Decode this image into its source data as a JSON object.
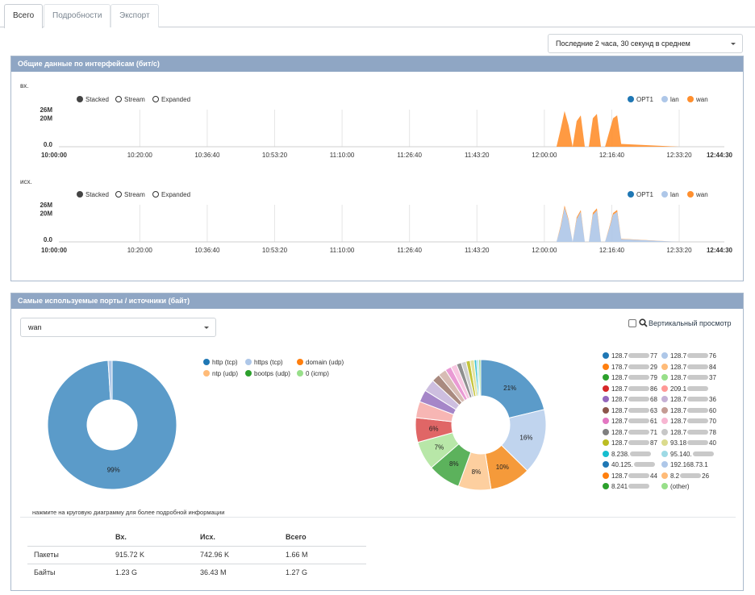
{
  "tabs": [
    "Всего",
    "Подробности",
    "Экспорт"
  ],
  "period_select": "Последние 2 часа, 30 секунд в среднем",
  "interfaces_panel": {
    "title": "Общие данные по интерфейсам (бит/с)",
    "in_label": "вх.",
    "out_label": "исх.",
    "modes": [
      "Stacked",
      "Stream",
      "Expanded"
    ],
    "series": [
      {
        "name": "OPT1",
        "color": "#1f77b4"
      },
      {
        "name": "lan",
        "color": "#aec7e8"
      },
      {
        "name": "wan",
        "color": "#ff8f2e"
      }
    ],
    "y_ticks": [
      "26M",
      "20M",
      "0.0"
    ],
    "x_ticks": [
      "10:00:00",
      "10:20:00",
      "10:36:40",
      "10:53:20",
      "11:10:00",
      "11:26:40",
      "11:43:20",
      "12:00:00",
      "12:16:40",
      "12:33:20",
      "12:44:30"
    ]
  },
  "ports_panel": {
    "title": "Самые используемые порты / источники (байт)",
    "interface_select": "wan",
    "vertical_view_label": "Вертикальный просмотр",
    "hint": "нажмите на круговую диаграмму для более подробной информации"
  },
  "chart_data": [
    {
      "type": "area",
      "title": "",
      "xlabel": "вх.",
      "ylabel": "",
      "ylim": [
        0,
        26000000
      ],
      "x": [
        "10:00:00",
        "10:20:00",
        "10:36:40",
        "10:53:20",
        "11:10:00",
        "11:26:40",
        "11:43:20",
        "12:00:00",
        "12:03:00",
        "12:04:00",
        "12:05:00",
        "12:06:00",
        "12:07:00",
        "12:08:00",
        "12:09:00",
        "12:10:00",
        "12:11:00",
        "12:12:00",
        "12:13:00",
        "12:14:00",
        "12:15:00",
        "12:16:00",
        "12:17:00",
        "12:18:00",
        "12:19:00",
        "12:33:20",
        "12:44:30"
      ],
      "series": [
        {
          "name": "wan",
          "values": [
            0,
            0,
            0,
            0,
            0,
            0,
            0,
            0,
            0,
            12000000,
            25000000,
            15000000,
            0,
            18000000,
            22000000,
            0,
            0,
            20000000,
            23000000,
            0,
            0,
            10000000,
            20000000,
            22000000,
            2000000,
            0,
            0
          ]
        },
        {
          "name": "lan",
          "values": [
            0,
            0,
            0,
            0,
            0,
            0,
            0,
            0,
            0,
            0,
            0,
            0,
            0,
            0,
            0,
            0,
            0,
            0,
            0,
            0,
            0,
            0,
            0,
            0,
            0,
            0,
            0
          ]
        },
        {
          "name": "OPT1",
          "values": [
            0,
            0,
            0,
            0,
            0,
            0,
            0,
            0,
            0,
            0,
            0,
            0,
            0,
            0,
            0,
            0,
            0,
            0,
            0,
            0,
            0,
            0,
            0,
            0,
            0,
            0,
            0
          ]
        }
      ],
      "legend": "top-right"
    },
    {
      "type": "area",
      "title": "",
      "xlabel": "исх.",
      "ylabel": "",
      "ylim": [
        0,
        26000000
      ],
      "x": [
        "10:00:00",
        "10:20:00",
        "10:36:40",
        "10:53:20",
        "11:10:00",
        "11:26:40",
        "11:43:20",
        "12:00:00",
        "12:03:00",
        "12:04:00",
        "12:05:00",
        "12:06:00",
        "12:07:00",
        "12:08:00",
        "12:09:00",
        "12:10:00",
        "12:11:00",
        "12:12:00",
        "12:13:00",
        "12:14:00",
        "12:15:00",
        "12:16:00",
        "12:17:00",
        "12:18:00",
        "12:19:00",
        "12:33:20",
        "12:44:30"
      ],
      "series": [
        {
          "name": "lan",
          "values": [
            0,
            0,
            0,
            0,
            0,
            0,
            0,
            0,
            0,
            10000000,
            24000000,
            15000000,
            0,
            16000000,
            21000000,
            0,
            0,
            19000000,
            22000000,
            0,
            0,
            9000000,
            19000000,
            21000000,
            2000000,
            0,
            0
          ]
        },
        {
          "name": "wan",
          "values": [
            0,
            0,
            0,
            0,
            0,
            0,
            0,
            0,
            0,
            1000000,
            1500000,
            800000,
            0,
            1200000,
            1300000,
            0,
            0,
            1400000,
            1500000,
            0,
            0,
            800000,
            1300000,
            1400000,
            200000,
            0,
            0
          ]
        },
        {
          "name": "OPT1",
          "values": [
            0,
            0,
            0,
            0,
            0,
            0,
            0,
            0,
            0,
            0,
            0,
            0,
            0,
            0,
            0,
            0,
            0,
            0,
            0,
            0,
            0,
            0,
            0,
            0,
            0,
            0,
            0
          ]
        }
      ],
      "legend": "top-right"
    },
    {
      "type": "pie",
      "title": "",
      "slices": [
        {
          "label": "http (tcp)",
          "value": 99,
          "color": "#5b9bc9",
          "text": "99%"
        },
        {
          "label": "https (tcp)",
          "value": 1,
          "color": "#aec7e8",
          "text": ""
        }
      ],
      "legend": [
        {
          "label": "http (tcp)",
          "color": "#1f77b4"
        },
        {
          "label": "https (tcp)",
          "color": "#aec7e8"
        },
        {
          "label": "domain (udp)",
          "color": "#ff7f0e"
        },
        {
          "label": "ntp (udp)",
          "color": "#ffbb78"
        },
        {
          "label": "bootps (udp)",
          "color": "#2ca02c"
        },
        {
          "label": "0 (icmp)",
          "color": "#98df8a"
        }
      ]
    },
    {
      "type": "pie",
      "title": "",
      "slices": [
        {
          "label": "128.7…77",
          "value": 21,
          "color": "#5b9bc9",
          "text": "21%"
        },
        {
          "label": "128.7…76",
          "value": 16,
          "color": "#c0d4ee",
          "text": "16%"
        },
        {
          "label": "178.7…29",
          "value": 10,
          "color": "#f59a3a",
          "text": "10%"
        },
        {
          "label": "128.7…84",
          "value": 8,
          "color": "#fdcf9f",
          "text": "8%"
        },
        {
          "label": "128.7…79",
          "value": 8,
          "color": "#5cb25c",
          "text": "8%"
        },
        {
          "label": "128.7…37",
          "value": 7,
          "color": "#b8e7a8",
          "text": "7%"
        },
        {
          "label": "128.7…86",
          "value": 6,
          "color": "#e06666",
          "text": "6%"
        },
        {
          "label": "209.1…",
          "value": 4,
          "color": "#f7b6b4",
          "text": ""
        },
        {
          "label": "128.7…68",
          "value": 3,
          "color": "#a586c8",
          "text": ""
        },
        {
          "label": "128.7…36",
          "value": 3,
          "color": "#cdbedf",
          "text": ""
        },
        {
          "label": "128.7…63",
          "value": 2,
          "color": "#a98a7f",
          "text": ""
        },
        {
          "label": "128.7…60",
          "value": 2,
          "color": "#d7bcb4",
          "text": ""
        },
        {
          "label": "128.7…61",
          "value": 1.5,
          "color": "#e99ad4",
          "text": ""
        },
        {
          "label": "128.7…70",
          "value": 1.5,
          "color": "#f7c6e0",
          "text": ""
        },
        {
          "label": "128.7…71",
          "value": 1.2,
          "color": "#8f8f8f",
          "text": ""
        },
        {
          "label": "128.7…78",
          "value": 1.2,
          "color": "#cfcfcf",
          "text": ""
        },
        {
          "label": "128.7…87",
          "value": 1,
          "color": "#c4c43a",
          "text": ""
        },
        {
          "label": "93.18…40",
          "value": 1,
          "color": "#e3e39d",
          "text": ""
        },
        {
          "label": "8.238…",
          "value": 0.6,
          "color": "#3cc3d3",
          "text": ""
        },
        {
          "label": "95.140…",
          "value": 0.5,
          "color": "#a8e0ea",
          "text": ""
        },
        {
          "label": "(other)",
          "value": 0.5,
          "color": "#9ed88d",
          "text": ""
        }
      ],
      "legend": [
        {
          "label": "128.7",
          "suffix": "77",
          "color": "#1f77b4"
        },
        {
          "label": "128.7",
          "suffix": "76",
          "color": "#aec7e8"
        },
        {
          "label": "178.7",
          "suffix": "29",
          "color": "#ff7f0e"
        },
        {
          "label": "128.7",
          "suffix": "84",
          "color": "#ffbb78"
        },
        {
          "label": "128.7",
          "suffix": "79",
          "color": "#2ca02c"
        },
        {
          "label": "128.7",
          "suffix": "37",
          "color": "#98df8a"
        },
        {
          "label": "128.7",
          "suffix": "86",
          "color": "#d62728"
        },
        {
          "label": "209.1",
          "suffix": "",
          "color": "#ff9896"
        },
        {
          "label": "128.7",
          "suffix": "68",
          "color": "#9467bd"
        },
        {
          "label": "128.7",
          "suffix": "36",
          "color": "#c5b0d5"
        },
        {
          "label": "128.7",
          "suffix": "63",
          "color": "#8c564b"
        },
        {
          "label": "128.7",
          "suffix": "60",
          "color": "#c49c94"
        },
        {
          "label": "128.7",
          "suffix": "61",
          "color": "#e377c2"
        },
        {
          "label": "128.7",
          "suffix": "70",
          "color": "#f7b6d2"
        },
        {
          "label": "128.7",
          "suffix": "71",
          "color": "#7f7f7f"
        },
        {
          "label": "128.7",
          "suffix": "78",
          "color": "#c7c7c7"
        },
        {
          "label": "128.7",
          "suffix": "87",
          "color": "#bcbd22"
        },
        {
          "label": "93.18",
          "suffix": "40",
          "color": "#dbdb8d"
        },
        {
          "label": "8.238.",
          "suffix": "",
          "color": "#17becf"
        },
        {
          "label": "95.140.",
          "suffix": "",
          "color": "#9edae5"
        },
        {
          "label": "40.125.",
          "suffix": "",
          "color": "#1f77b4"
        },
        {
          "label": "192.168.73.1",
          "suffix": "",
          "color": "#aec7e8"
        },
        {
          "label": "128.7",
          "suffix": "44",
          "color": "#ff7f0e"
        },
        {
          "label": "8.2",
          "suffix": "26",
          "color": "#ffbb78"
        },
        {
          "label": "8.241",
          "suffix": "",
          "color": "#2ca02c"
        },
        {
          "label": "(other)",
          "suffix": "",
          "color": "#98df8a"
        }
      ]
    }
  ],
  "stats": {
    "headers": [
      "",
      "Вх.",
      "Исх.",
      "Всего"
    ],
    "rows": [
      [
        "Пакеты",
        "915.72 K",
        "742.96 K",
        "1.66 M"
      ],
      [
        "Байты",
        "1.23 G",
        "36.43 M",
        "1.27 G"
      ]
    ]
  }
}
